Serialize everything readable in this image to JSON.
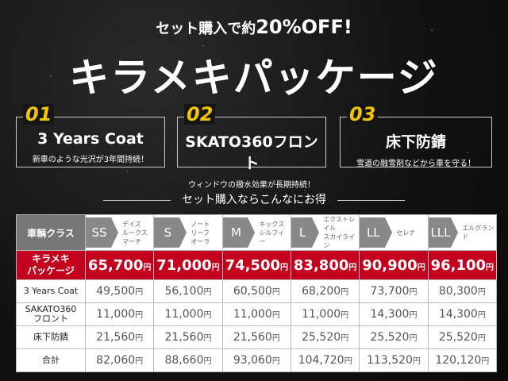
{
  "header": {
    "subtitle_pre": "セット購入で約",
    "subtitle_big": "20%OFF!",
    "title": "キラメキパッケージ"
  },
  "features": [
    {
      "num": "01",
      "name": "3 Years Coat",
      "desc": "新車のような光沢が3年間持続！"
    },
    {
      "num": "02",
      "name": "SKATO360フロント",
      "desc": "ウィンドウの撥水効果が長期持続！"
    },
    {
      "num": "03",
      "name": "床下防錆",
      "desc": "雪道の融雪剤などから車を守る！"
    }
  ],
  "section_title": "セット購入ならこんなにお得",
  "table": {
    "header_label": "車輌クラス",
    "yen": "円",
    "classes": [
      {
        "code": "SS",
        "cars": "デイズ\nルークス\nマーチ"
      },
      {
        "code": "S",
        "cars": "ノート\nリーフ\nオーラ"
      },
      {
        "code": "M",
        "cars": "キックス\nシルフィー"
      },
      {
        "code": "L",
        "cars": "エクストレイル\nスカイライン"
      },
      {
        "code": "LL",
        "cars": "セレナ"
      },
      {
        "code": "LLL",
        "cars": "エルグランド"
      }
    ],
    "package_row": {
      "label": "キラメキ\nパッケージ",
      "values": [
        "65,700",
        "71,000",
        "74,500",
        "83,800",
        "90,900",
        "96,100"
      ]
    },
    "rows": [
      {
        "label": "3 Years Coat",
        "values": [
          "49,500",
          "56,100",
          "60,500",
          "68,200",
          "73,700",
          "80,300"
        ]
      },
      {
        "label": "SAKATO360\nフロント",
        "values": [
          "11,000",
          "11,000",
          "11,000",
          "11,000",
          "14,300",
          "14,300"
        ]
      },
      {
        "label": "床下防錆",
        "values": [
          "21,560",
          "21,560",
          "21,560",
          "25,520",
          "25,520",
          "25,520"
        ]
      },
      {
        "label": "合計",
        "values": [
          "82,060",
          "88,660",
          "93,060",
          "104,720",
          "113,520",
          "120,120"
        ]
      }
    ]
  }
}
